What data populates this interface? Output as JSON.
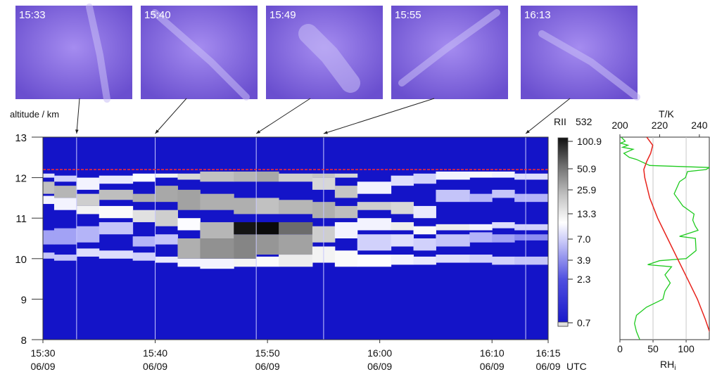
{
  "photos": [
    {
      "time": "15:33"
    },
    {
      "time": "15:40"
    },
    {
      "time": "15:49"
    },
    {
      "time": "15:55"
    },
    {
      "time": "16:13"
    }
  ],
  "colors": {
    "photo_base": "#7a5fd8",
    "background": "#1414c8",
    "tropopause_line": "#ff2a2a",
    "temperature_line": "#e8231c",
    "rhi_line": "#1ecb1e"
  },
  "chart_data": [
    {
      "type": "heatmap",
      "title": "",
      "ylabel": "altitude / km",
      "xlabel": "UTC",
      "ylim": [
        8,
        13
      ],
      "yticks": [
        "8",
        "9",
        "10",
        "11",
        "12",
        "13"
      ],
      "xticks": [
        {
          "time": "15:30",
          "date": "06/09"
        },
        {
          "time": "15:40",
          "date": "06/09"
        },
        {
          "time": "15:50",
          "date": "06/09"
        },
        {
          "time": "16:00",
          "date": "06/09"
        },
        {
          "time": "16:10",
          "date": "06/09"
        },
        {
          "time": "16:15",
          "date": "06/09"
        }
      ],
      "photo_marker_times": [
        "15:33",
        "15:40",
        "15:49",
        "15:55",
        "16:13"
      ],
      "tropopause_altitude_km": 12.2,
      "columns": [
        {
          "start": "15:30",
          "end": "15:31",
          "layers": [
            [
              10.0,
              10.15,
              8
            ],
            [
              10.35,
              10.7,
              6
            ],
            [
              11.35,
              11.55,
              12
            ],
            [
              11.6,
              11.9,
              25
            ],
            [
              12.0,
              12.1,
              10
            ]
          ]
        },
        {
          "start": "15:31",
          "end": "15:33",
          "layers": [
            [
              9.95,
              10.1,
              8
            ],
            [
              10.35,
              10.75,
              6
            ],
            [
              11.2,
              11.5,
              12
            ],
            [
              11.5,
              11.8,
              28
            ],
            [
              11.9,
              12.05,
              9
            ]
          ]
        },
        {
          "start": "15:33",
          "end": "15:35",
          "layers": [
            [
              10.05,
              10.25,
              10
            ],
            [
              10.4,
              10.8,
              7
            ],
            [
              11.1,
              11.3,
              15
            ],
            [
              11.3,
              11.6,
              22
            ],
            [
              11.7,
              12.0,
              12
            ]
          ]
        },
        {
          "start": "15:35",
          "end": "15:38",
          "layers": [
            [
              10.0,
              10.2,
              10
            ],
            [
              10.6,
              10.9,
              8
            ],
            [
              11.0,
              11.3,
              14
            ],
            [
              11.45,
              11.7,
              26
            ],
            [
              11.85,
              12.05,
              11
            ]
          ]
        },
        {
          "start": "15:38",
          "end": "15:40",
          "layers": [
            [
              9.95,
              10.15,
              9
            ],
            [
              10.3,
              10.55,
              7
            ],
            [
              10.9,
              11.2,
              18
            ],
            [
              11.4,
              11.6,
              30
            ],
            [
              11.9,
              12.1,
              13
            ]
          ]
        },
        {
          "start": "15:40",
          "end": "15:42",
          "layers": [
            [
              9.9,
              10.05,
              11
            ],
            [
              10.35,
              10.6,
              8
            ],
            [
              10.8,
              11.2,
              22
            ],
            [
              11.4,
              11.8,
              32
            ],
            [
              12.0,
              12.1,
              15
            ]
          ]
        },
        {
          "start": "15:42",
          "end": "15:44",
          "layers": [
            [
              9.8,
              10.0,
              12
            ],
            [
              10.0,
              10.5,
              30
            ],
            [
              10.7,
              11.0,
              13
            ],
            [
              11.2,
              11.7,
              34
            ],
            [
              11.95,
              12.1,
              20
            ]
          ]
        },
        {
          "start": "15:44",
          "end": "15:47",
          "layers": [
            [
              9.75,
              10.0,
              12
            ],
            [
              10.0,
              10.5,
              40
            ],
            [
              10.5,
              10.9,
              28
            ],
            [
              11.2,
              11.6,
              30
            ],
            [
              11.9,
              12.15,
              25
            ]
          ]
        },
        {
          "start": "15:47",
          "end": "15:49",
          "layers": [
            [
              9.8,
              10.0,
              15
            ],
            [
              10.0,
              10.6,
              45
            ],
            [
              10.6,
              10.9,
              95
            ],
            [
              11.1,
              11.5,
              30
            ],
            [
              11.9,
              12.15,
              28
            ]
          ]
        },
        {
          "start": "15:49",
          "end": "15:51",
          "layers": [
            [
              9.8,
              10.05,
              14
            ],
            [
              10.1,
              10.6,
              38
            ],
            [
              10.6,
              10.9,
              101
            ],
            [
              11.1,
              11.5,
              25
            ],
            [
              11.9,
              12.15,
              32
            ]
          ]
        },
        {
          "start": "15:51",
          "end": "15:54",
          "layers": [
            [
              9.8,
              10.1,
              16
            ],
            [
              10.1,
              10.6,
              34
            ],
            [
              10.6,
              10.9,
              55
            ],
            [
              11.1,
              11.45,
              28
            ],
            [
              11.9,
              12.1,
              22
            ]
          ]
        },
        {
          "start": "15:54",
          "end": "15:56",
          "layers": [
            [
              9.9,
              10.3,
              15
            ],
            [
              10.4,
              10.8,
              22
            ],
            [
              11.0,
              11.4,
              30
            ],
            [
              11.7,
              12.0,
              20
            ],
            [
              12.0,
              12.1,
              24
            ]
          ]
        },
        {
          "start": "15:56",
          "end": "15:58",
          "layers": [
            [
              9.8,
              10.2,
              14
            ],
            [
              10.5,
              10.9,
              12
            ],
            [
              11.0,
              11.3,
              26
            ],
            [
              11.5,
              11.8,
              24
            ],
            [
              12.0,
              12.1,
              20
            ]
          ]
        },
        {
          "start": "15:58",
          "end": "16:01",
          "layers": [
            [
              9.8,
              10.1,
              13
            ],
            [
              10.2,
              10.6,
              9
            ],
            [
              10.7,
              11.0,
              12
            ],
            [
              11.2,
              11.4,
              22
            ],
            [
              11.6,
              11.9,
              12
            ]
          ]
        },
        {
          "start": "16:01",
          "end": "16:03",
          "layers": [
            [
              9.85,
              10.1,
              12
            ],
            [
              10.3,
              10.6,
              10
            ],
            [
              10.7,
              10.9,
              16
            ],
            [
              11.1,
              11.4,
              20
            ],
            [
              11.8,
              12.05,
              10
            ]
          ]
        },
        {
          "start": "16:03",
          "end": "16:05",
          "layers": [
            [
              9.85,
              10.05,
              11
            ],
            [
              10.2,
              10.5,
              9
            ],
            [
              10.6,
              10.8,
              14
            ],
            [
              11.0,
              11.3,
              11
            ],
            [
              11.85,
              12.1,
              9
            ]
          ]
        },
        {
          "start": "16:05",
          "end": "16:08",
          "layers": [
            [
              9.9,
              10.1,
              10
            ],
            [
              10.3,
              10.6,
              8
            ],
            [
              10.7,
              10.85,
              16
            ],
            [
              11.4,
              11.7,
              8
            ],
            [
              11.95,
              12.15,
              12
            ]
          ]
        },
        {
          "start": "16:08",
          "end": "16:10",
          "layers": [
            [
              9.9,
              10.1,
              9
            ],
            [
              10.4,
              10.65,
              7
            ],
            [
              10.7,
              10.85,
              12
            ],
            [
              11.4,
              11.6,
              7
            ],
            [
              12.0,
              12.15,
              14
            ]
          ]
        },
        {
          "start": "16:10",
          "end": "16:12",
          "layers": [
            [
              9.85,
              10.05,
              9
            ],
            [
              10.4,
              10.6,
              6
            ],
            [
              10.75,
              10.9,
              10
            ],
            [
              11.5,
              11.7,
              8
            ],
            [
              12.0,
              12.15,
              12
            ]
          ]
        },
        {
          "start": "16:12",
          "end": "16:15",
          "layers": [
            [
              9.85,
              10.05,
              8
            ],
            [
              10.45,
              10.6,
              5
            ],
            [
              10.7,
              10.85,
              9
            ],
            [
              11.4,
              11.6,
              7
            ],
            [
              11.95,
              12.1,
              10
            ]
          ]
        }
      ]
    },
    {
      "type": "colorbar",
      "label": "RII",
      "wavelength": "532",
      "ticks": [
        "100.9",
        "50.9",
        "25.9",
        "13.3",
        "7.0",
        "3.9",
        "2.3",
        "0.7"
      ]
    },
    {
      "type": "line",
      "top_axis_label": "T/K",
      "top_ticks": [
        "200",
        "220",
        "240"
      ],
      "top_range": [
        200,
        245
      ],
      "bottom_axis_label": "RH",
      "bottom_axis_label_sub": "i",
      "bottom_ticks": [
        "0",
        "50",
        "100"
      ],
      "bottom_range": [
        0,
        135
      ],
      "ylim": [
        8,
        13
      ],
      "series": [
        {
          "key": "T",
          "values": [
            [
              13,
              213.5
            ],
            [
              12.8,
              216.5
            ],
            [
              12.6,
              215.5
            ],
            [
              12.4,
              213.5
            ],
            [
              12.2,
              212
            ],
            [
              12.0,
              212.5
            ],
            [
              11.5,
              215
            ],
            [
              11.0,
              219
            ],
            [
              10.5,
              224
            ],
            [
              10.0,
              229
            ],
            [
              9.5,
              234
            ],
            [
              9.0,
              239
            ],
            [
              8.5,
              243
            ],
            [
              8.0,
              246.5
            ]
          ]
        },
        {
          "key": "RH",
          "values": [
            [
              13,
              2
            ],
            [
              12.9,
              8
            ],
            [
              12.85,
              1
            ],
            [
              12.8,
              12
            ],
            [
              12.75,
              4
            ],
            [
              12.7,
              20
            ],
            [
              12.6,
              6
            ],
            [
              12.5,
              14
            ],
            [
              12.45,
              25
            ],
            [
              12.3,
              45
            ],
            [
              12.25,
              135
            ],
            [
              12.2,
              130
            ],
            [
              12.15,
              102
            ],
            [
              12.0,
              99
            ],
            [
              11.9,
              90
            ],
            [
              11.6,
              82
            ],
            [
              11.3,
              95
            ],
            [
              11.1,
              112
            ],
            [
              10.95,
              110
            ],
            [
              10.8,
              114
            ],
            [
              10.7,
              118
            ],
            [
              10.55,
              90
            ],
            [
              10.5,
              114
            ],
            [
              10.2,
              115
            ],
            [
              10.0,
              100
            ],
            [
              9.95,
              60
            ],
            [
              9.85,
              42
            ],
            [
              9.8,
              78
            ],
            [
              9.6,
              68
            ],
            [
              9.4,
              76
            ],
            [
              9.2,
              68
            ],
            [
              9.0,
              65
            ],
            [
              8.8,
              40
            ],
            [
              8.6,
              25
            ],
            [
              8.4,
              22
            ],
            [
              8.2,
              25
            ],
            [
              8.0,
              30
            ]
          ]
        }
      ]
    }
  ]
}
